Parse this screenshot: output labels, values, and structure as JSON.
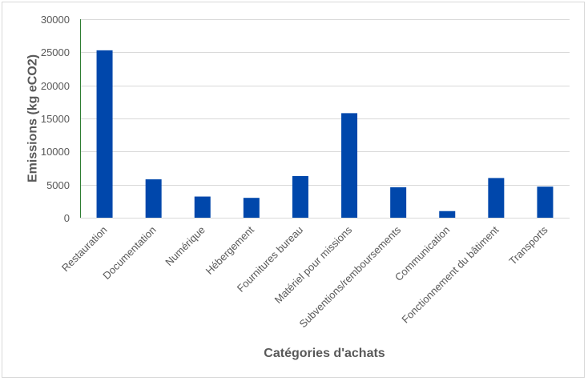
{
  "chart_data": {
    "type": "bar",
    "title": "",
    "xlabel": "Catégories d'achats",
    "ylabel": "Emissions  (kg eCO2)",
    "ylim": [
      0,
      30000
    ],
    "yticks": [
      0,
      5000,
      10000,
      15000,
      20000,
      25000,
      30000
    ],
    "grid": true,
    "legend": "none",
    "bar_color": "#0047AB",
    "categories": [
      "Restauration",
      "Documentation",
      "Numérique",
      "Hébergement",
      "Fournitures bureau",
      "Matériel pour missions",
      "Subventions/remboursements",
      "Communication",
      "Fonctionnement du bâtiment",
      "Transports"
    ],
    "values": [
      25300,
      5800,
      3200,
      3000,
      6300,
      15800,
      4600,
      1000,
      6000,
      4700
    ]
  }
}
